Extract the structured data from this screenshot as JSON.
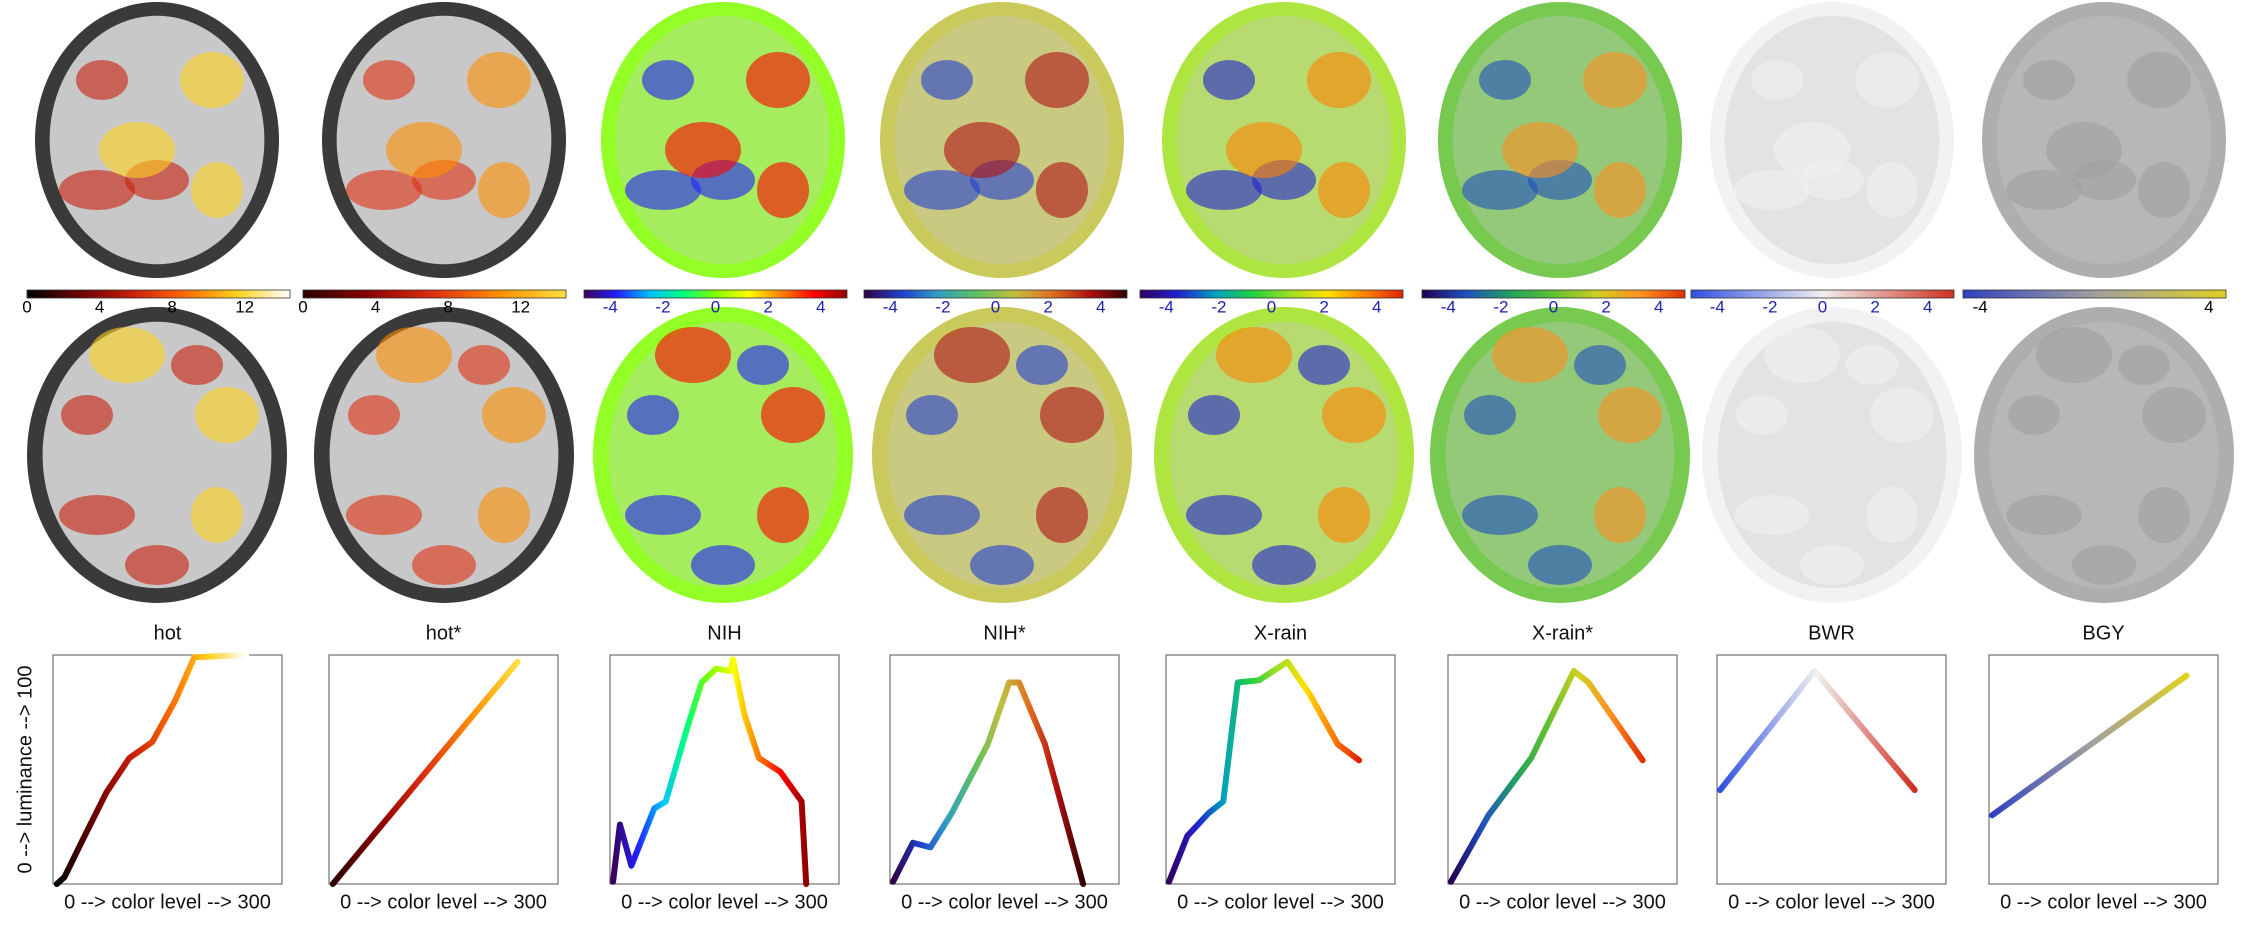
{
  "chart_data": [
    {
      "type": "line",
      "title": "hot",
      "xlabel": "0 --> color level --> 300",
      "ylabel": "0 --> luminance --> 100",
      "xlim": [
        0,
        300
      ],
      "ylim": [
        0,
        100
      ],
      "colormap": [
        "#000000",
        "#6a0000",
        "#c81e0a",
        "#ff6a00",
        "#ffd21e",
        "#ffffff"
      ],
      "colorbar": {
        "lim": [
          0,
          14.5
        ],
        "ticks": [
          0,
          4,
          8,
          12
        ],
        "tick_color": "#000000"
      },
      "x": [
        5,
        15,
        40,
        70,
        100,
        130,
        160,
        185,
        253
      ],
      "values": [
        0,
        3,
        20,
        40,
        55,
        62,
        80,
        99,
        100
      ]
    },
    {
      "type": "line",
      "title": "hot*",
      "xlabel": "0 --> color level --> 300",
      "xlim": [
        0,
        300
      ],
      "ylim": [
        0,
        100
      ],
      "colormap": [
        "#2a0000",
        "#8b0000",
        "#e03010",
        "#ff9000",
        "#ffe040"
      ],
      "colorbar": {
        "lim": [
          0,
          14.5
        ],
        "ticks": [
          0,
          4,
          8,
          12
        ],
        "tick_color": "#000000"
      },
      "x": [
        5,
        247
      ],
      "values": [
        0,
        97
      ]
    },
    {
      "type": "line",
      "title": "NIH",
      "xlabel": "0 --> color level --> 300",
      "xlim": [
        0,
        300
      ],
      "ylim": [
        0,
        100
      ],
      "colormap": [
        "#3a005a",
        "#2020ff",
        "#00c0ff",
        "#00ff80",
        "#80ff00",
        "#ffff00",
        "#ff8000",
        "#ff0000",
        "#900000"
      ],
      "colorbar": {
        "lim": [
          -5,
          5
        ],
        "ticks": [
          -4,
          -2,
          0,
          2,
          4
        ],
        "tick_color": "#2020b0"
      },
      "x": [
        4,
        13,
        28,
        58,
        73,
        101,
        120,
        139,
        158,
        161,
        176,
        195,
        223,
        251,
        257
      ],
      "values": [
        1,
        26,
        8,
        33,
        36,
        68,
        88,
        94,
        93,
        98,
        74,
        55,
        49,
        36,
        0
      ]
    },
    {
      "type": "line",
      "title": "NIH*",
      "xlabel": "0 --> color level --> 300",
      "xlim": [
        0,
        300
      ],
      "ylim": [
        0,
        100
      ],
      "colormap": [
        "#300040",
        "#2040d0",
        "#30a0c0",
        "#60c060",
        "#c0c040",
        "#e07020",
        "#b01010",
        "#300000"
      ],
      "colorbar": {
        "lim": [
          -5,
          5
        ],
        "ticks": [
          -4,
          -2,
          0,
          2,
          4
        ],
        "tick_color": "#2020b0"
      },
      "x": [
        4,
        30,
        53,
        81,
        128,
        156,
        169,
        203,
        253
      ],
      "values": [
        1,
        18,
        16,
        31,
        61,
        88,
        88,
        61,
        0
      ]
    },
    {
      "type": "line",
      "title": "X-rain",
      "xlabel": "0 --> color level --> 300",
      "xlim": [
        0,
        300
      ],
      "ylim": [
        0,
        100
      ],
      "colormap": [
        "#300060",
        "#2020d0",
        "#00a0c0",
        "#20d040",
        "#a0e020",
        "#ffe000",
        "#ff8000",
        "#e02000"
      ],
      "colorbar": {
        "lim": [
          -5,
          5
        ],
        "ticks": [
          -4,
          -2,
          0,
          2,
          4
        ],
        "tick_color": "#2020b0"
      },
      "x": [
        4,
        28,
        56,
        75,
        94,
        122,
        159,
        188,
        225,
        253
      ],
      "values": [
        1,
        21,
        31,
        36,
        88,
        89,
        97,
        83,
        61,
        54
      ]
    },
    {
      "type": "line",
      "title": "X-rain*",
      "xlabel": "0 --> color level --> 300",
      "xlim": [
        0,
        300
      ],
      "ylim": [
        0,
        100
      ],
      "colormap": [
        "#200050",
        "#2050c0",
        "#20a060",
        "#60c030",
        "#d0d020",
        "#ff9020",
        "#e03000"
      ],
      "colorbar": {
        "lim": [
          -5,
          5
        ],
        "ticks": [
          -4,
          -2,
          0,
          2,
          4
        ],
        "tick_color": "#2020b0"
      },
      "x": [
        4,
        53,
        109,
        165,
        184,
        255
      ],
      "values": [
        1,
        30,
        55,
        93,
        88,
        54
      ]
    },
    {
      "type": "line",
      "title": "BWR",
      "xlabel": "0 --> color level --> 300",
      "xlim": [
        0,
        300
      ],
      "ylim": [
        0,
        100
      ],
      "colormap": [
        "#3050e0",
        "#f0f0f0",
        "#d03020"
      ],
      "colorbar": {
        "lim": [
          -5,
          5
        ],
        "ticks": [
          -4,
          -2,
          0,
          2,
          4
        ],
        "tick_color": "#2020b0"
      },
      "x": [
        4,
        128,
        259
      ],
      "values": [
        41,
        93,
        41
      ]
    },
    {
      "type": "line",
      "title": "BGY",
      "xlabel": "0 --> color level --> 300",
      "xlim": [
        0,
        300
      ],
      "ylim": [
        0,
        100
      ],
      "colormap": [
        "#3040c0",
        "#a0a0a0",
        "#e0d020"
      ],
      "colorbar": {
        "lim": [
          -4.6,
          4.6
        ],
        "ticks": [
          -4,
          4
        ],
        "tick_color": "#000000"
      },
      "x": [
        4,
        259
      ],
      "values": [
        30,
        91
      ]
    }
  ]
}
